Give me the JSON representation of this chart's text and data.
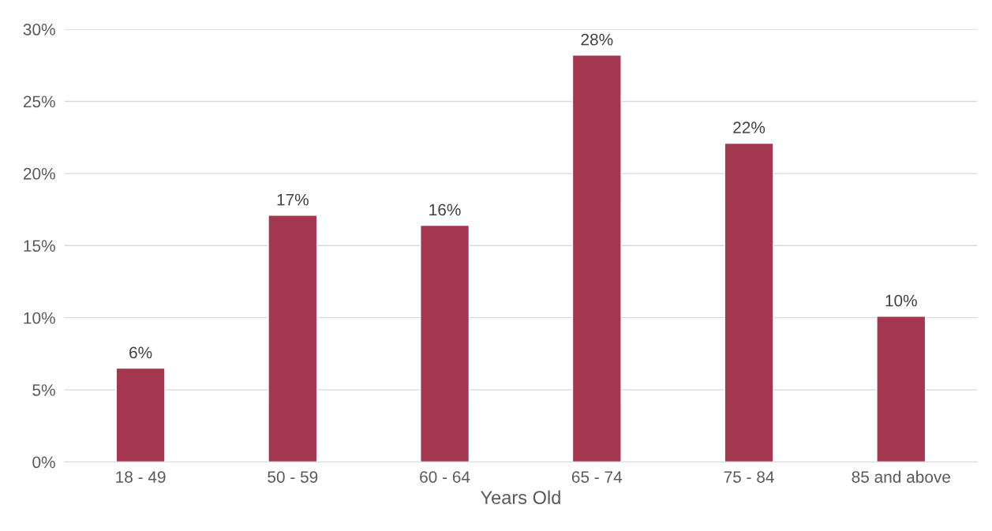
{
  "chart_data": {
    "type": "bar",
    "xlabel": "Years Old",
    "categories": [
      "18 - 49",
      "50 - 59",
      "60 - 64",
      "65 - 74",
      "75 - 84",
      "85 and above"
    ],
    "values": [
      6.5,
      17.1,
      16.4,
      28.2,
      22.1,
      10.1
    ],
    "value_labels": [
      "6%",
      "17%",
      "16%",
      "28%",
      "22%",
      "10%"
    ],
    "color": "#a3374f",
    "ylim": [
      0,
      30
    ],
    "yticks": [
      {
        "value": 0,
        "label": "0%"
      },
      {
        "value": 5,
        "label": "5%"
      },
      {
        "value": 10,
        "label": "10%"
      },
      {
        "value": 15,
        "label": "15%"
      },
      {
        "value": 20,
        "label": "20%"
      },
      {
        "value": 25,
        "label": "25%"
      },
      {
        "value": 30,
        "label": "30%"
      }
    ],
    "grid": "y",
    "legend": false
  }
}
